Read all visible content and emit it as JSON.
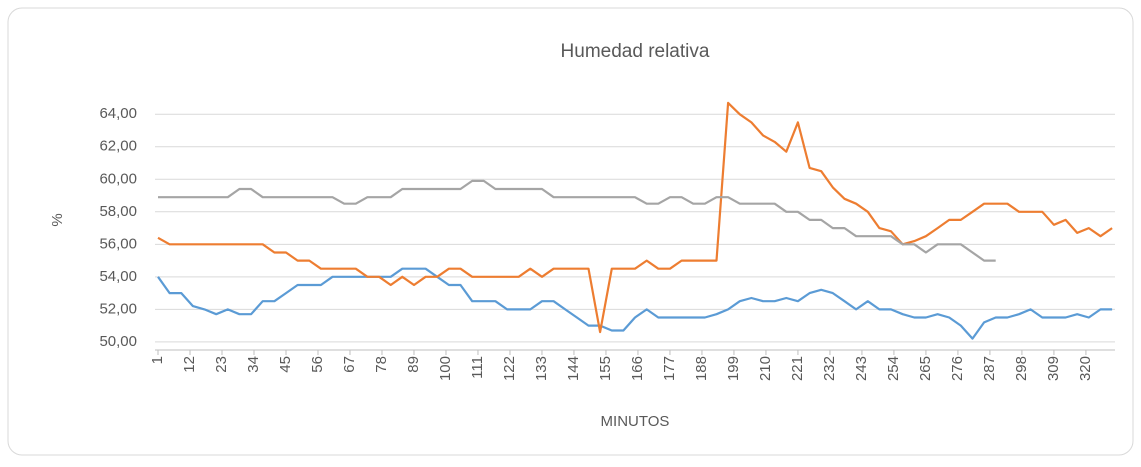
{
  "chart_data": {
    "type": "line",
    "title": "Humedad relativa",
    "x_label": "MINUTOS",
    "y_label": "%",
    "x": [
      1,
      5,
      9,
      13,
      17,
      21,
      25,
      29,
      33,
      37,
      41,
      45,
      49,
      53,
      57,
      61,
      65,
      69,
      73,
      77,
      81,
      85,
      89,
      93,
      97,
      101,
      105,
      109,
      113,
      117,
      121,
      125,
      129,
      133,
      137,
      141,
      145,
      149,
      153,
      157,
      161,
      165,
      169,
      173,
      177,
      181,
      185,
      189,
      193,
      197,
      201,
      205,
      209,
      213,
      217,
      221,
      225,
      229,
      233,
      237,
      241,
      245,
      249,
      253,
      257,
      261,
      265,
      269,
      273,
      277,
      281,
      285,
      289,
      293,
      297,
      301,
      305,
      309,
      313,
      317,
      321,
      325,
      329
    ],
    "series": [
      {
        "color": "#5b9bd5",
        "values": [
          54.0,
          53.0,
          53.0,
          52.2,
          52.0,
          51.7,
          52.0,
          51.7,
          51.7,
          52.5,
          52.5,
          53.0,
          53.5,
          53.5,
          53.5,
          54.0,
          54.0,
          54.0,
          54.0,
          54.0,
          54.0,
          54.5,
          54.5,
          54.5,
          54.0,
          53.5,
          53.5,
          52.5,
          52.5,
          52.5,
          52.0,
          52.0,
          52.0,
          52.5,
          52.5,
          52.0,
          51.5,
          51.0,
          51.0,
          50.7,
          50.7,
          51.5,
          52.0,
          51.5,
          51.5,
          51.5,
          51.5,
          51.5,
          51.7,
          52.0,
          52.5,
          52.7,
          52.5,
          52.5,
          52.7,
          52.5,
          53.0,
          53.2,
          53.0,
          52.5,
          52.0,
          52.5,
          52.0,
          52.0,
          51.7,
          51.5,
          51.5,
          51.7,
          51.5,
          51.0,
          50.2,
          51.2,
          51.5,
          51.5,
          51.7,
          52.0,
          51.5,
          51.5,
          51.5,
          51.7,
          51.5,
          52.0,
          52.0
        ]
      },
      {
        "color": "#ed7d31",
        "values": [
          56.4,
          56.0,
          56.0,
          56.0,
          56.0,
          56.0,
          56.0,
          56.0,
          56.0,
          56.0,
          55.5,
          55.5,
          55.0,
          55.0,
          54.5,
          54.5,
          54.5,
          54.5,
          54.0,
          54.0,
          53.5,
          54.0,
          53.5,
          54.0,
          54.0,
          54.5,
          54.5,
          54.0,
          54.0,
          54.0,
          54.0,
          54.0,
          54.5,
          54.0,
          54.5,
          54.5,
          54.5,
          54.5,
          50.6,
          54.5,
          54.5,
          54.5,
          55.0,
          54.5,
          54.5,
          55.0,
          55.0,
          55.0,
          55.0,
          64.7,
          64.0,
          63.5,
          62.7,
          62.3,
          61.7,
          63.5,
          60.7,
          60.5,
          59.5,
          58.8,
          58.5,
          58.0,
          57.0,
          56.8,
          56.0,
          56.2,
          56.5,
          57.0,
          57.5,
          57.5,
          58.0,
          58.5,
          58.5,
          58.5,
          58.0,
          58.0,
          58.0,
          57.2,
          57.5,
          56.7,
          57.0,
          56.5,
          57.0
        ]
      },
      {
        "color": "#a5a5a5",
        "values": [
          58.9,
          58.9,
          58.9,
          58.9,
          58.9,
          58.9,
          58.9,
          59.4,
          59.4,
          58.9,
          58.9,
          58.9,
          58.9,
          58.9,
          58.9,
          58.9,
          58.5,
          58.5,
          58.9,
          58.9,
          58.9,
          59.4,
          59.4,
          59.4,
          59.4,
          59.4,
          59.4,
          59.9,
          59.9,
          59.4,
          59.4,
          59.4,
          59.4,
          59.4,
          58.9,
          58.9,
          58.9,
          58.9,
          58.9,
          58.9,
          58.9,
          58.9,
          58.5,
          58.5,
          58.9,
          58.9,
          58.5,
          58.5,
          58.9,
          58.9,
          58.5,
          58.5,
          58.5,
          58.5,
          58.0,
          58.0,
          57.5,
          57.5,
          57.0,
          57.0,
          56.5,
          56.5,
          56.5,
          56.5,
          56.0,
          56.0,
          55.5,
          56.0,
          56.0,
          56.0,
          55.5,
          55.0,
          55.0,
          null,
          null,
          null,
          null,
          null,
          null,
          null,
          null,
          null,
          null
        ]
      }
    ],
    "xlim": [
      1,
      330
    ],
    "xticks": [
      1,
      12,
      23,
      34,
      45,
      56,
      67,
      78,
      89,
      100,
      111,
      122,
      133,
      144,
      155,
      166,
      177,
      188,
      199,
      210,
      221,
      232,
      243,
      254,
      265,
      276,
      287,
      298,
      309,
      320
    ],
    "ylim": [
      49.5,
      65
    ],
    "yticks": [
      {
        "value": 50,
        "label": "50,00"
      },
      {
        "value": 52,
        "label": "52,00"
      },
      {
        "value": 54,
        "label": "54,00"
      },
      {
        "value": 56,
        "label": "56,00"
      },
      {
        "value": 58,
        "label": "58,00"
      },
      {
        "value": 60,
        "label": "60,00"
      },
      {
        "value": 62,
        "label": "62,00"
      },
      {
        "value": 64,
        "label": "64,00"
      }
    ],
    "grid": true
  }
}
